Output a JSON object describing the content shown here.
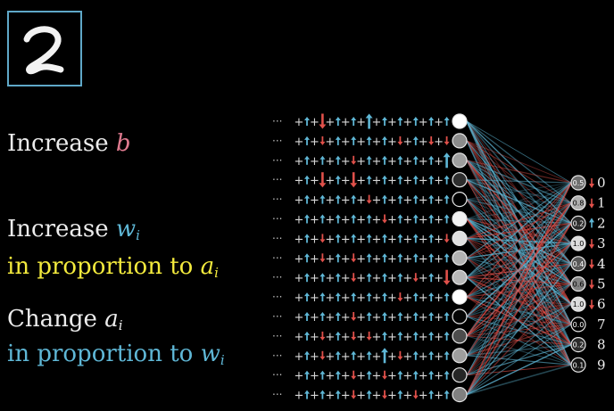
{
  "digit": "2",
  "lines": {
    "l1_text": "Increase",
    "l1_var": "b",
    "l2_text": "Increase",
    "l2_var": "w",
    "l2_sub": "i",
    "l3_text": "in proportion to",
    "l3_var": "a",
    "l3_sub": "i",
    "l4_text": "Change",
    "l4_var": "a",
    "l4_sub": "i",
    "l5_text": "in proportion to",
    "l5_var": "w",
    "l5_sub": "i"
  },
  "colors": {
    "background": "#000000",
    "white_text": "#ececec",
    "bias_pink": "#e07b90",
    "weight_blue": "#5fb7d6",
    "activation_yellow": "#f3ea3d",
    "positive_arrow": "#5fb7d6",
    "negative_arrow": "#e0504a",
    "frame_blue": "#5fa8c8"
  },
  "hidden_activations": [
    1.0,
    0.55,
    0.62,
    0.18,
    0.0,
    0.95,
    0.88,
    0.7,
    0.72,
    1.0,
    0.02,
    0.3,
    0.62,
    0.15,
    0.5
  ],
  "arrow_rows": [
    [
      1,
      -2,
      1,
      1,
      2,
      1,
      1,
      1,
      1,
      1
    ],
    [
      1,
      -1,
      1,
      1,
      1,
      1,
      -1,
      1,
      -1,
      -1
    ],
    [
      1,
      1,
      1,
      -1,
      1,
      1,
      1,
      1,
      1,
      2
    ],
    [
      1,
      -2,
      1,
      -2,
      1,
      1,
      1,
      1,
      1,
      1
    ],
    [
      1,
      1,
      1,
      1,
      -1,
      1,
      1,
      1,
      1,
      1
    ],
    [
      1,
      1,
      1,
      1,
      1,
      -1,
      1,
      1,
      1,
      1
    ],
    [
      1,
      -1,
      1,
      1,
      1,
      1,
      1,
      1,
      1,
      -1
    ],
    [
      1,
      -1,
      1,
      -1,
      1,
      1,
      1,
      1,
      1,
      1
    ],
    [
      1,
      1,
      1,
      -1,
      1,
      1,
      1,
      -1,
      1,
      -2
    ],
    [
      1,
      1,
      1,
      1,
      1,
      1,
      -1,
      1,
      1,
      1
    ],
    [
      1,
      1,
      1,
      -1,
      1,
      1,
      1,
      1,
      1,
      1
    ],
    [
      1,
      -1,
      1,
      -1,
      -1,
      1,
      1,
      1,
      1,
      1
    ],
    [
      1,
      -1,
      1,
      1,
      1,
      2,
      -1,
      1,
      1,
      1
    ],
    [
      1,
      1,
      1,
      -1,
      1,
      -1,
      1,
      1,
      1,
      1
    ],
    [
      1,
      1,
      1,
      -1,
      1,
      -1,
      1,
      -1,
      1,
      1
    ]
  ],
  "outputs": [
    {
      "digit": "0",
      "value": "0.5",
      "arrow": "down"
    },
    {
      "digit": "1",
      "value": "0.8",
      "arrow": "down"
    },
    {
      "digit": "2",
      "value": "0.2",
      "arrow": "up"
    },
    {
      "digit": "3",
      "value": "1.0",
      "arrow": "down"
    },
    {
      "digit": "4",
      "value": "0.4",
      "arrow": "down"
    },
    {
      "digit": "5",
      "value": "0.6",
      "arrow": "down"
    },
    {
      "digit": "6",
      "value": "1.0",
      "arrow": "down"
    },
    {
      "digit": "7",
      "value": "0.0",
      "arrow": "none"
    },
    {
      "digit": "8",
      "value": "0.2",
      "arrow": "none"
    },
    {
      "digit": "9",
      "value": "0.1",
      "arrow": "none"
    }
  ]
}
